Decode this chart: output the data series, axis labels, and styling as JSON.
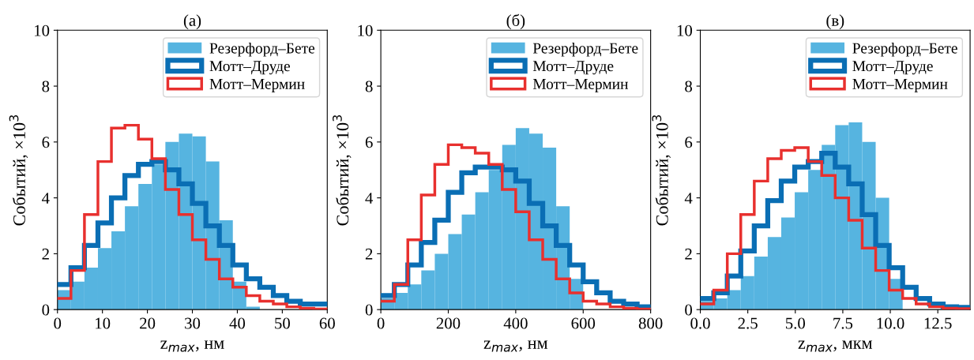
{
  "chart_data": [
    {
      "type": "histogram",
      "title": "(a)",
      "xlabel": "z$_{max}$, нм",
      "ylabel": "Событий, ×10$^{3}$",
      "bins": [
        0,
        3,
        6,
        9,
        12,
        15,
        18,
        21,
        24,
        27,
        30,
        33,
        36,
        39,
        42,
        45,
        48,
        51,
        54,
        57,
        60
      ],
      "xlim": [
        0,
        60
      ],
      "xticks": [
        0,
        10,
        20,
        30,
        40,
        50,
        60
      ],
      "ylim": [
        0,
        10
      ],
      "yticks": [
        0,
        2,
        4,
        6,
        8,
        10
      ],
      "legend": "top right",
      "grid": false,
      "series": [
        {
          "name": "Резерфорд–Бете",
          "color": "#56b4e0",
          "values": [
            0.7,
            1.0,
            1.5,
            2.2,
            2.8,
            3.7,
            4.5,
            5.2,
            6.0,
            6.3,
            6.2,
            5.3,
            3.2,
            1.0,
            0.1,
            0,
            0,
            0,
            0,
            0
          ]
        },
        {
          "name": "Мотт–Друде",
          "type": "step",
          "color": "#0a6eb4",
          "x": [
            0,
            3,
            6,
            9,
            12,
            15,
            18,
            21,
            24,
            27,
            30,
            33,
            36,
            39,
            42,
            45,
            48,
            51,
            54,
            57,
            60
          ],
          "values": [
            0.9,
            1.5,
            2.3,
            3.1,
            4.0,
            4.8,
            5.2,
            5.3,
            5.0,
            4.5,
            3.8,
            3.0,
            2.3,
            1.6,
            1.1,
            0.8,
            0.5,
            0.3,
            0.2,
            0.2,
            0.2
          ]
        },
        {
          "name": "Мотт–Мермин",
          "type": "step",
          "color": "#e8302e",
          "x": [
            0,
            3,
            6,
            9,
            12,
            15,
            18,
            21,
            24,
            27,
            30,
            33,
            36,
            39,
            42,
            45,
            48,
            51,
            54,
            57,
            60
          ],
          "values": [
            0.4,
            1.4,
            3.4,
            5.3,
            6.5,
            6.6,
            6.1,
            5.4,
            4.3,
            3.4,
            2.5,
            1.8,
            1.1,
            0.8,
            0.5,
            0.3,
            0.2,
            0.1,
            0.05,
            0.02,
            0.02
          ]
        }
      ]
    },
    {
      "type": "histogram",
      "title": "(б)",
      "xlabel": "z$_{max}$, нм",
      "ylabel": "Событий, ×10$^{3}$",
      "bins": [
        0,
        40,
        80,
        120,
        160,
        200,
        240,
        280,
        320,
        360,
        400,
        440,
        480,
        520,
        560,
        600,
        640,
        680,
        720,
        760,
        800
      ],
      "xlim": [
        0,
        800
      ],
      "xticks": [
        0,
        200,
        400,
        600,
        800
      ],
      "ylim": [
        0,
        10
      ],
      "yticks": [
        0,
        2,
        4,
        6,
        8,
        10
      ],
      "legend": "top right",
      "grid": false,
      "series": [
        {
          "name": "Резерфорд–Бете",
          "color": "#56b4e0",
          "values": [
            0.4,
            0.6,
            0.9,
            1.4,
            2.0,
            2.7,
            3.4,
            4.2,
            5.0,
            5.9,
            6.5,
            6.3,
            5.8,
            3.7,
            1.1,
            0,
            0,
            0,
            0,
            0
          ]
        },
        {
          "name": "Мотт–Друде",
          "type": "step",
          "color": "#0a6eb4",
          "x": [
            0,
            40,
            80,
            120,
            160,
            200,
            240,
            280,
            320,
            360,
            400,
            440,
            480,
            520,
            560,
            600,
            640,
            680,
            720,
            760,
            800
          ],
          "values": [
            0.5,
            0.9,
            1.6,
            2.4,
            3.2,
            4.2,
            4.9,
            5.1,
            5.1,
            5.0,
            4.6,
            3.8,
            3.0,
            2.3,
            1.6,
            1.0,
            0.6,
            0.3,
            0.2,
            0.1,
            0.1
          ]
        },
        {
          "name": "Мотт–Мермин",
          "type": "step",
          "color": "#e8302e",
          "x": [
            0,
            40,
            80,
            120,
            160,
            200,
            240,
            280,
            320,
            360,
            400,
            440,
            480,
            520,
            560,
            600,
            640,
            680,
            720,
            760,
            800
          ],
          "values": [
            0.3,
            0.9,
            2.5,
            4.1,
            5.2,
            5.9,
            5.8,
            5.6,
            5.2,
            4.3,
            3.5,
            2.5,
            1.8,
            1.1,
            0.6,
            0.3,
            0.2,
            0.1,
            0.05,
            0.02,
            0.02
          ]
        }
      ]
    },
    {
      "type": "histogram",
      "title": "(в)",
      "xlabel": "z$_{max}$, мкм",
      "ylabel": "Событий, ×10$^{3}$",
      "bins": [
        0,
        0.71,
        1.42,
        2.13,
        2.84,
        3.55,
        4.26,
        4.97,
        5.68,
        6.39,
        7.1,
        7.81,
        8.52,
        9.23,
        9.94,
        10.65,
        11.36,
        12.07,
        12.78,
        13.49,
        14.2
      ],
      "xlim": [
        0,
        14.2
      ],
      "xticks": [
        {
          "value": 0,
          "label": "0.0"
        },
        {
          "value": 2.5,
          "label": "2.5"
        },
        {
          "value": 5,
          "label": "5.0"
        },
        {
          "value": 7.5,
          "label": "7.5"
        },
        {
          "value": 10,
          "label": "10.0"
        },
        {
          "value": 12.5,
          "label": "12.5"
        }
      ],
      "ylim": [
        0,
        10
      ],
      "yticks": [
        0,
        2,
        4,
        6,
        8,
        10
      ],
      "legend": "top right",
      "grid": false,
      "series": [
        {
          "name": "Резерфорд–Бете",
          "color": "#56b4e0",
          "values": [
            0.3,
            0.4,
            0.7,
            1.2,
            1.9,
            2.6,
            3.3,
            4.2,
            5.0,
            5.9,
            6.6,
            6.7,
            6.0,
            4.0,
            1.1,
            0,
            0,
            0,
            0,
            0
          ]
        },
        {
          "name": "Мотт–Друде",
          "type": "step",
          "color": "#0a6eb4",
          "x": [
            0,
            0.71,
            1.42,
            2.13,
            2.84,
            3.55,
            4.26,
            4.97,
            5.68,
            6.39,
            7.1,
            7.81,
            8.52,
            9.23,
            9.94,
            10.65,
            11.36,
            12.07,
            12.78,
            13.49,
            14.2
          ],
          "values": [
            0.4,
            0.6,
            1.2,
            2.1,
            3.0,
            3.9,
            4.6,
            5.1,
            5.3,
            5.6,
            5.1,
            4.5,
            3.4,
            2.3,
            1.5,
            0.8,
            0.4,
            0.2,
            0.1,
            0.08,
            0.08
          ]
        },
        {
          "name": "Мотт–Мермин",
          "type": "step",
          "color": "#e8302e",
          "x": [
            0,
            0.71,
            1.42,
            2.13,
            2.84,
            3.55,
            4.26,
            4.97,
            5.68,
            6.39,
            7.1,
            7.81,
            8.52,
            9.23,
            9.94,
            10.65,
            11.36,
            12.07,
            12.78,
            13.49,
            14.2
          ],
          "values": [
            0.2,
            0.7,
            2.0,
            3.4,
            4.6,
            5.4,
            5.7,
            5.8,
            5.3,
            4.8,
            4.0,
            3.2,
            2.2,
            1.4,
            0.7,
            0.4,
            0.2,
            0.1,
            0.05,
            0.03,
            0.03
          ]
        }
      ]
    }
  ]
}
